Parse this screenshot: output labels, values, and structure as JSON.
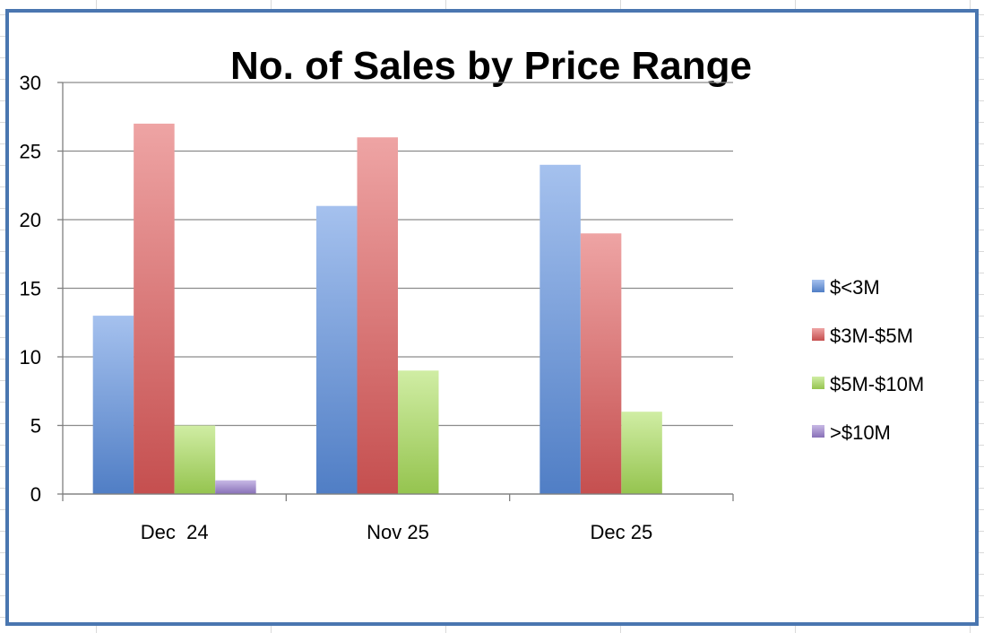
{
  "chart_data": {
    "type": "bar",
    "title": "No. of Sales by Price Range",
    "categories": [
      "Dec  24",
      "Nov 25",
      "Dec 25"
    ],
    "series": [
      {
        "name": "$<3M",
        "values": [
          13,
          21,
          24
        ],
        "color": "#5b8fe0"
      },
      {
        "name": "$3M-$5M",
        "values": [
          27,
          26,
          19
        ],
        "color": "#e05a5a"
      },
      {
        "name": "$5M-$10M",
        "values": [
          5,
          9,
          6
        ],
        "color": "#a9df5a"
      },
      {
        "name": ">$10M",
        "values": [
          1,
          0,
          0
        ],
        "color": "#9b7fd0"
      }
    ],
    "ylim": [
      0,
      30
    ],
    "yticks": [
      "0",
      "5",
      "10",
      "15",
      "20",
      "25",
      "30"
    ],
    "grid": true,
    "legend_position": "right"
  }
}
